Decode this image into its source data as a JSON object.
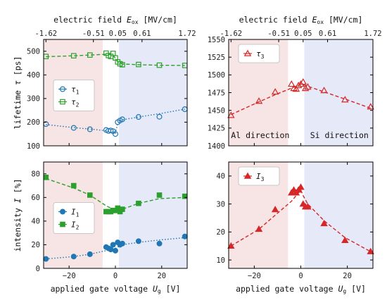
{
  "chart_data": [
    {
      "id": "lifetime-left",
      "type": "scatter",
      "xlabel": "applied gate voltage U_g [V]",
      "xlabel_main": "applied gate voltage ",
      "xlabel_sym": "U",
      "xlabel_sub": "g",
      "xlabel_unit": " [V]",
      "ylabel": "lifetime τ [ps]",
      "ylabel_main": "lifetime ",
      "ylabel_sym": "τ",
      "ylabel_unit": " [ps]",
      "top_xlabel": "electric field E_ox [MV/cm]",
      "top_xlabel_main": "electric field ",
      "top_xlabel_sym": "E",
      "top_xlabel_sub": "ox",
      "top_xlabel_unit": " [MV/cm]",
      "xlim": [
        -31,
        31
      ],
      "ylim": [
        100,
        550
      ],
      "xticks": [
        -20,
        0,
        20
      ],
      "xtick_labels": [],
      "yticks": [
        100,
        200,
        300,
        400,
        500
      ],
      "ytick_labels": [
        "100",
        "200",
        "300",
        "400",
        "500"
      ],
      "top_xticks": [
        -30,
        -9.5,
        1,
        11.5,
        32
      ],
      "top_xtick_labels": [
        "-1.62",
        "-0.51",
        "0.05",
        "0.61",
        "1.72"
      ],
      "regions": {
        "left_end": -5.5,
        "right_start": 1.5,
        "left_color": "#f7e4e4",
        "right_color": "#e6e9f7"
      },
      "legend_position": "center-left",
      "series": [
        {
          "name": "τ1",
          "sym": "τ",
          "sub": "1",
          "color": "#1f77b4",
          "marker": "circle",
          "filled": false,
          "line": "dotted",
          "x": [
            -30,
            -18,
            -11,
            -4,
            -3,
            -2,
            -1,
            0,
            1,
            2,
            3,
            10,
            19,
            30
          ],
          "y": [
            192,
            176,
            170,
            167,
            163,
            165,
            162,
            150,
            200,
            207,
            212,
            222,
            223,
            255
          ],
          "fit_x": [
            -30,
            -18,
            -11,
            -4,
            -1,
            0,
            1,
            3,
            10,
            19,
            30
          ],
          "fit_y": [
            190,
            177,
            171,
            164,
            158,
            152,
            196,
            210,
            222,
            236,
            255
          ]
        },
        {
          "name": "τ2",
          "sym": "τ",
          "sub": "2",
          "color": "#2ca02c",
          "marker": "square",
          "filled": false,
          "line": "dashed",
          "x": [
            -30,
            -18,
            -11,
            -4,
            -3,
            -2,
            -1,
            0,
            1,
            2,
            3,
            10,
            19,
            30
          ],
          "y": [
            478,
            481,
            484,
            492,
            482,
            478,
            491,
            472,
            455,
            447,
            443,
            444,
            441,
            440
          ],
          "fit_x": [
            -30,
            -18,
            -11,
            -4,
            -1,
            0,
            1,
            3,
            10,
            19,
            30
          ],
          "fit_y": [
            477,
            481,
            484,
            487,
            484,
            470,
            455,
            446,
            443,
            441,
            440
          ]
        }
      ]
    },
    {
      "id": "lifetime-right",
      "type": "scatter",
      "xlabel": "applied gate voltage U_g [V]",
      "xlabel_main": "applied gate voltage ",
      "xlabel_sym": "U",
      "xlabel_sub": "g",
      "xlabel_unit": " [V]",
      "top_xlabel": "electric field E_ox [MV/cm]",
      "top_xlabel_main": "electric field ",
      "top_xlabel_sym": "E",
      "top_xlabel_sub": "ox",
      "top_xlabel_unit": " [MV/cm]",
      "xlim": [
        -31,
        31
      ],
      "ylim": [
        1400,
        1550
      ],
      "xticks": [
        -20,
        0,
        20
      ],
      "xtick_labels": [],
      "yticks": [
        1400,
        1425,
        1450,
        1475,
        1500,
        1525,
        1550
      ],
      "ytick_labels": [
        "1400",
        "1425",
        "1450",
        "1475",
        "1500",
        "1525",
        "1550"
      ],
      "top_xticks": [
        -30,
        -9.5,
        1,
        11.5,
        32
      ],
      "top_xtick_labels": [
        "-1.62",
        "-0.51",
        "0.05",
        "0.61",
        "1.72"
      ],
      "regions": {
        "left_end": -5.5,
        "right_start": 1.5,
        "left_color": "#f7e4e4",
        "right_color": "#e6e9f7"
      },
      "legend_position": "top-left",
      "annotations": [
        {
          "text": "Al direction",
          "x": -30,
          "y": 1405
        },
        {
          "text": "Si direction",
          "x": 4,
          "y": 1405
        }
      ],
      "series": [
        {
          "name": "τ3",
          "sym": "τ",
          "sub": "3",
          "color": "#d62728",
          "marker": "triangle",
          "filled": false,
          "line": "dashed",
          "x": [
            -30,
            -18,
            -11,
            -4,
            -3,
            -2,
            -1,
            0,
            1,
            2,
            3,
            10,
            19,
            30
          ],
          "y": [
            1443,
            1463,
            1476,
            1487,
            1481,
            1480,
            1485,
            1487,
            1490,
            1481,
            1483,
            1478,
            1465,
            1455
          ],
          "fit_x": [
            -30,
            -18,
            -11,
            -2,
            0,
            3,
            10,
            19,
            30
          ],
          "fit_y": [
            1444,
            1462,
            1472,
            1484,
            1487,
            1484,
            1476,
            1466,
            1453
          ]
        }
      ]
    },
    {
      "id": "intensity-left",
      "type": "scatter",
      "xlabel": "applied gate voltage U_g [V]",
      "xlabel_main": "applied gate voltage ",
      "xlabel_sym": "U",
      "xlabel_sub": "g",
      "xlabel_unit": " [V]",
      "ylabel": "intensity I [%]",
      "ylabel_main": "intensity ",
      "ylabel_sym": "I",
      "ylabel_unit": " [%]",
      "xlim": [
        -31,
        31
      ],
      "ylim": [
        0,
        90
      ],
      "xticks": [
        -20,
        0,
        20
      ],
      "xtick_labels": [
        "−20",
        "0",
        "20"
      ],
      "yticks": [
        0,
        20,
        40,
        60,
        80
      ],
      "ytick_labels": [
        "0",
        "20",
        "40",
        "60",
        "80"
      ],
      "regions": {
        "left_end": -5.5,
        "right_start": 1.5,
        "left_color": "#f7e4e4",
        "right_color": "#e6e9f7"
      },
      "legend_position": "center-left",
      "series": [
        {
          "name": "I1",
          "sym": "I",
          "sub": "1",
          "color": "#1f77b4",
          "marker": "circle",
          "filled": true,
          "line": "dotted",
          "x": [
            -30,
            -18,
            -11,
            -4,
            -3,
            -2,
            -1,
            0,
            1,
            2,
            3,
            10,
            19,
            30
          ],
          "y": [
            8,
            10,
            12,
            18,
            17,
            16,
            20,
            15,
            22,
            20,
            21,
            23,
            21,
            27
          ],
          "fit_x": [
            -30,
            -18,
            -11,
            -4,
            -1,
            0,
            1,
            3,
            10,
            19,
            30
          ],
          "fit_y": [
            8,
            10,
            12,
            15,
            16,
            17,
            18,
            20,
            22,
            24,
            26
          ]
        },
        {
          "name": "I2",
          "sym": "I",
          "sub": "2",
          "color": "#2ca02c",
          "marker": "square",
          "filled": true,
          "line": "dashed",
          "x": [
            -30,
            -18,
            -11,
            -4,
            -3,
            -2,
            -1,
            0,
            1,
            2,
            3,
            10,
            19,
            30
          ],
          "y": [
            77,
            70,
            62,
            48,
            48,
            48,
            49,
            49,
            51,
            48,
            50,
            55,
            62,
            61
          ],
          "fit_x": [
            -30,
            -18,
            -11,
            -4,
            -1,
            0,
            1,
            3,
            10,
            19,
            30
          ],
          "fit_y": [
            76,
            68,
            62,
            53,
            50,
            49,
            49,
            50,
            55,
            59,
            60
          ]
        }
      ]
    },
    {
      "id": "intensity-right",
      "type": "scatter",
      "xlabel": "applied gate voltage U_g [V]",
      "xlabel_main": "applied gate voltage ",
      "xlabel_sym": "U",
      "xlabel_sub": "g",
      "xlabel_unit": " [V]",
      "xlim": [
        -31,
        31
      ],
      "ylim": [
        7,
        45
      ],
      "xticks": [
        -20,
        0,
        20
      ],
      "xtick_labels": [
        "−20",
        "0",
        "20"
      ],
      "yticks": [
        10,
        20,
        30,
        40
      ],
      "ytick_labels": [
        "10",
        "20",
        "30",
        "40"
      ],
      "regions": {
        "left_end": -5.5,
        "right_start": 1.5,
        "left_color": "#f7e4e4",
        "right_color": "#e6e9f7"
      },
      "legend_position": "top-left",
      "series": [
        {
          "name": "I3",
          "sym": "I",
          "sub": "3",
          "color": "#d62728",
          "marker": "triangle",
          "filled": true,
          "line": "dashed",
          "x": [
            -30,
            -18,
            -11,
            -4,
            -3,
            -2,
            -1,
            0,
            1,
            2,
            3,
            10,
            19,
            30
          ],
          "y": [
            15,
            21,
            28,
            34,
            35,
            34,
            35,
            36,
            30,
            29,
            29,
            23,
            17,
            13
          ],
          "fit_x": [
            -30,
            -18,
            -11,
            -4,
            -1,
            0,
            1,
            3,
            10,
            19,
            30
          ],
          "fit_y": [
            15,
            21,
            26,
            31,
            34,
            35,
            33,
            30,
            24,
            18,
            13
          ]
        }
      ]
    }
  ]
}
